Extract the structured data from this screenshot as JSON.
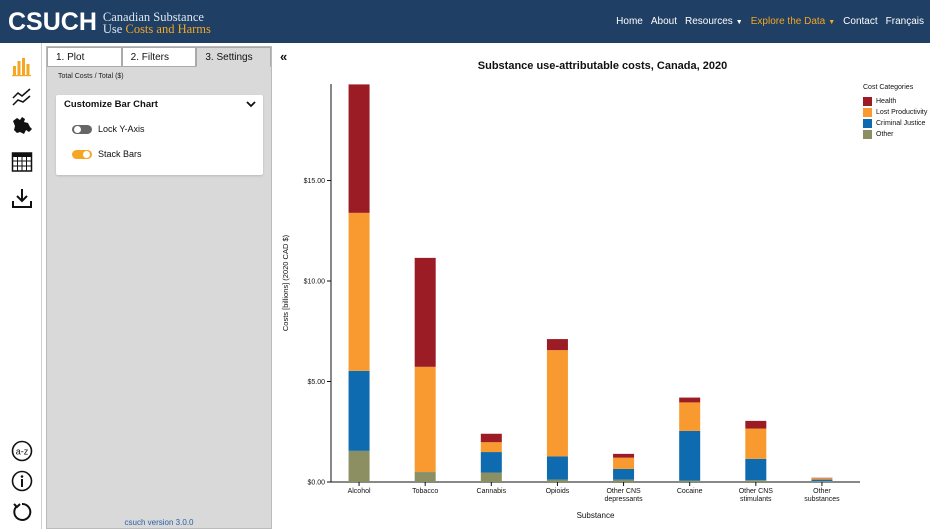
{
  "header": {
    "logo_main": "CSUCH",
    "logo_sub_line1": "Canadian Substance",
    "logo_sub_line2_a": "Use ",
    "logo_sub_line2_b": "Costs and Harms",
    "nav": [
      {
        "label": "Home"
      },
      {
        "label": "About"
      },
      {
        "label": "Resources"
      },
      {
        "label": "Explore the Data"
      },
      {
        "label": "Contact"
      },
      {
        "label": "Français"
      }
    ]
  },
  "rail": {
    "icons": [
      "bar-chart-icon",
      "line-chart-icon",
      "map-icon",
      "table-icon",
      "download-icon",
      "glossary-icon",
      "info-icon",
      "reset-icon"
    ]
  },
  "panel": {
    "tabs": [
      {
        "label": "1. Plot"
      },
      {
        "label": "2. Filters"
      },
      {
        "label": "3. Settings"
      }
    ],
    "active_tab": 2,
    "breadcrumb": "Total Costs  /  Total ($)",
    "card_title": "Customize Bar Chart",
    "lock_y_axis": "Lock Y-Axis",
    "stack_bars": "Stack Bars",
    "version": "csuch version 3.0.0"
  },
  "colors": {
    "header_bg": "#1f3f64",
    "accent": "#f5a623",
    "health": "#9b1c24",
    "lost_productivity": "#f89a30",
    "criminal_justice": "#0e6bb0",
    "other": "#8b8f62"
  },
  "chart_data": {
    "type": "bar",
    "stacked": true,
    "title": "Substance use-attributable costs, Canada, 2020",
    "xlabel": "Substance",
    "ylabel": "Costs [billions] (2020 CAD $)",
    "ylim": [
      0,
      19.8
    ],
    "yticks": [
      "$0.00",
      "$5.00",
      "$10.00",
      "$15.00"
    ],
    "legend_title": "Cost Categories",
    "legend_position": "top-right",
    "categories": [
      "Alcohol",
      "Tobacco",
      "Cannabis",
      "Opioids",
      "Other CNS depressants",
      "Cocaine",
      "Other CNS stimulants",
      "Other substances"
    ],
    "series": [
      {
        "name": "Other",
        "values": [
          1.55,
          0.47,
          0.47,
          0.12,
          0.12,
          0.07,
          0.09,
          0.04
        ]
      },
      {
        "name": "Criminal Justice",
        "values": [
          3.98,
          0.02,
          1.02,
          1.15,
          0.53,
          2.47,
          1.06,
          0.08
        ]
      },
      {
        "name": "Lost Productivity",
        "values": [
          7.86,
          5.24,
          0.49,
          5.29,
          0.56,
          1.42,
          1.51,
          0.07
        ]
      },
      {
        "name": "Health",
        "values": [
          6.39,
          5.42,
          0.42,
          0.55,
          0.19,
          0.24,
          0.38,
          0.02
        ]
      }
    ]
  }
}
